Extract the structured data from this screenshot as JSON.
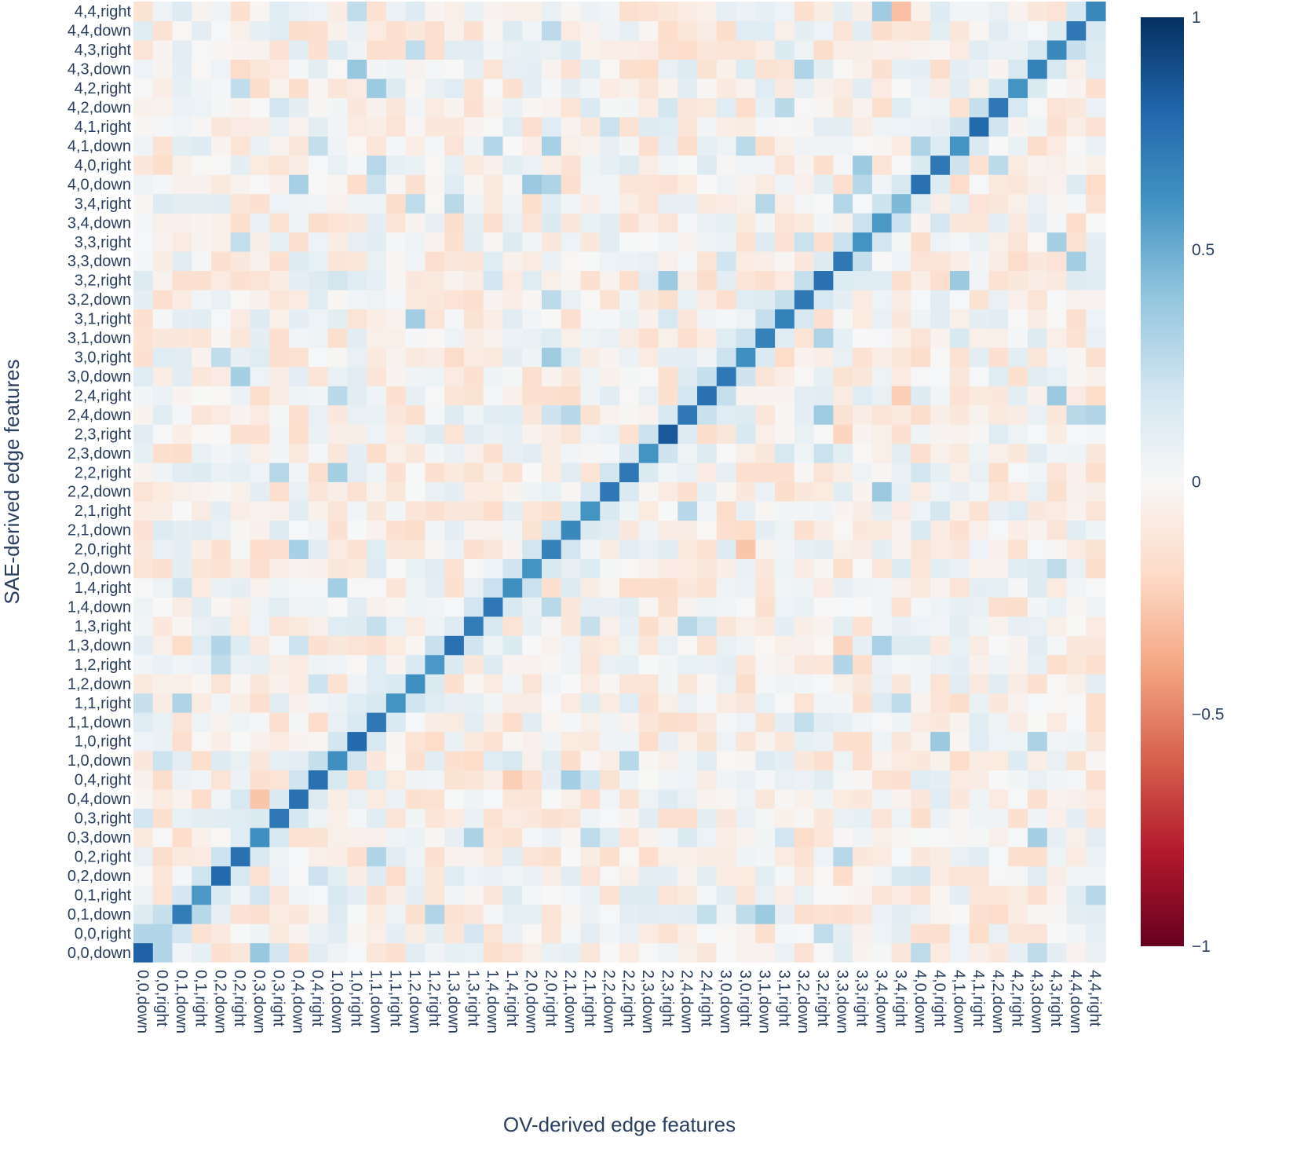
{
  "chart_data": {
    "type": "heatmap",
    "xlabel": "OV-derived edge features",
    "ylabel": "SAE-derived edge features",
    "categories": [
      "0,0,down",
      "0,0,right",
      "0,1,down",
      "0,1,right",
      "0,2,down",
      "0,2,right",
      "0,3,down",
      "0,3,right",
      "0,4,down",
      "0,4,right",
      "1,0,down",
      "1,0,right",
      "1,1,down",
      "1,1,right",
      "1,2,down",
      "1,2,right",
      "1,3,down",
      "1,3,right",
      "1,4,down",
      "1,4,right",
      "2,0,down",
      "2,0,right",
      "2,1,down",
      "2,1,right",
      "2,2,down",
      "2,2,right",
      "2,3,down",
      "2,3,right",
      "2,4,down",
      "2,4,right",
      "3,0,down",
      "3,0,right",
      "3,1,down",
      "3,1,right",
      "3,2,down",
      "3,2,right",
      "3,3,down",
      "3,3,right",
      "3,4,down",
      "3,4,right",
      "4,0,down",
      "4,0,right",
      "4,1,down",
      "4,1,right",
      "4,2,down",
      "4,2,right",
      "4,3,down",
      "4,3,right",
      "4,4,down",
      "4,4,right"
    ],
    "y_order": "bottom-to-top",
    "diagonal": [
      0.82,
      0.3,
      0.7,
      0.58,
      0.78,
      0.75,
      0.62,
      0.72,
      0.75,
      0.75,
      0.62,
      0.78,
      0.72,
      0.6,
      0.62,
      0.58,
      0.75,
      0.7,
      0.72,
      0.62,
      0.6,
      0.68,
      0.65,
      0.6,
      0.72,
      0.72,
      0.6,
      0.85,
      0.72,
      0.75,
      0.72,
      0.62,
      0.68,
      0.68,
      0.72,
      0.75,
      0.72,
      0.6,
      0.58,
      0.45,
      0.75,
      0.72,
      0.6,
      0.78,
      0.72,
      0.6,
      0.68,
      0.65,
      0.72,
      0.65
    ],
    "offdiag_range": [
      -0.3,
      0.35
    ],
    "notable": [
      {
        "row": "0,0,right",
        "col": "0,0,down",
        "value": 0.3
      },
      {
        "row": "0,0,down",
        "col": "0,0,right",
        "value": 0.3
      },
      {
        "row": "0,4,down",
        "col": "0,3,down",
        "value": -0.28
      },
      {
        "row": "4,4,right",
        "col": "3,4,right",
        "value": -0.3
      },
      {
        "row": "2,0,right",
        "col": "3,0,right",
        "value": -0.28
      },
      {
        "row": "2,4,right",
        "col": "3,4,right",
        "value": -0.25
      },
      {
        "row": "0,4,right",
        "col": "1,4,right",
        "value": -0.25
      },
      {
        "row": "1,3,down",
        "col": "3,3,down",
        "value": -0.22
      },
      {
        "row": "2,3,right",
        "col": "3,3,down",
        "value": -0.22
      }
    ],
    "colorscale": {
      "name": "RdBu",
      "range": [
        -1,
        1
      ],
      "ticks": [
        {
          "value": 1,
          "label": "1"
        },
        {
          "value": 0.5,
          "label": "0.5"
        },
        {
          "value": 0,
          "label": "0"
        },
        {
          "value": -0.5,
          "label": "−0.5"
        },
        {
          "value": -1,
          "label": "−1"
        }
      ],
      "stops": [
        "#053061",
        "#2166ac",
        "#4393c3",
        "#92c5de",
        "#d1e5f0",
        "#f7f7f7",
        "#fddbc7",
        "#f4a582",
        "#d6604d",
        "#b2182b",
        "#67001f"
      ]
    },
    "text_color": "#2a3f5f",
    "seed": 7
  }
}
